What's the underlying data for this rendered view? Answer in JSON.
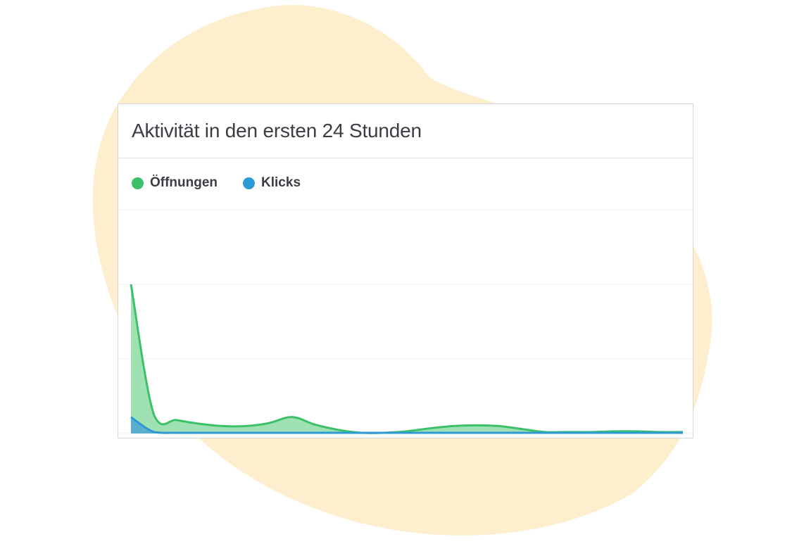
{
  "colors": {
    "blob": "#fdeecd",
    "card_border": "#d5d7dd",
    "grid": "#eef0f2",
    "opens_line": "#3cc168",
    "opens_fill": "#9adfae",
    "clicks_line": "#2d9ad5",
    "clicks_fill": "#52a9cf"
  },
  "card": {
    "title": "Aktivität in den ersten 24 Stunden"
  },
  "chart_data": {
    "type": "area",
    "title": "Aktivität in den ersten 24 Stunden",
    "legend_placement": "top-left",
    "grid": true,
    "ylim": [
      0,
      300
    ],
    "x": [
      0,
      1,
      2,
      3,
      4,
      5,
      6,
      7,
      8,
      9,
      10,
      11,
      12,
      13,
      14,
      15,
      16,
      17,
      18,
      19,
      20,
      21,
      22,
      23,
      24
    ],
    "series": [
      {
        "name": "Öffnungen",
        "color": "#3cc168",
        "values": [
          200,
          25,
          18,
          13,
          10,
          10,
          14,
          22,
          12,
          5,
          1,
          1,
          3,
          7,
          10,
          11,
          10,
          6,
          2,
          2,
          2,
          3,
          3,
          2,
          2
        ]
      },
      {
        "name": "Klicks",
        "color": "#2d9ad5",
        "values": [
          22,
          2,
          1,
          1,
          1,
          1,
          1,
          1,
          1,
          1,
          1,
          1,
          1,
          1,
          1,
          1,
          1,
          1,
          1,
          1,
          1,
          1,
          1,
          1,
          1
        ]
      }
    ]
  }
}
